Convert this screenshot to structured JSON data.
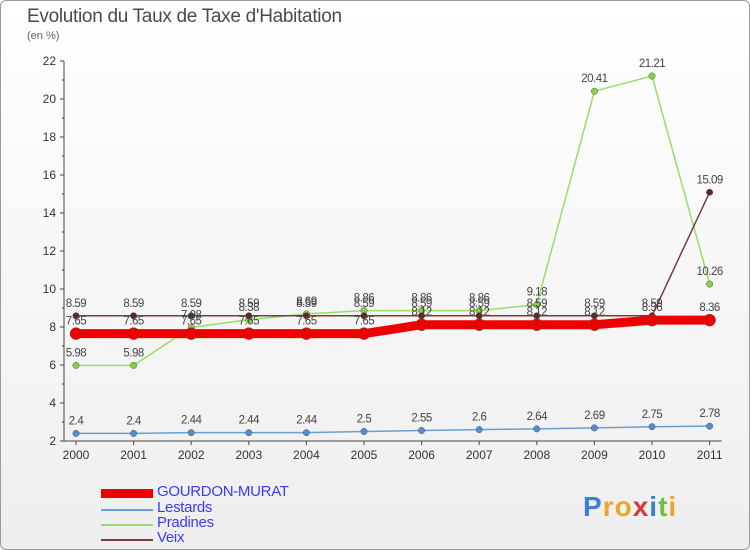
{
  "title": "Evolution du Taux de Taxe d'Habitation",
  "subtitle": "(en %)",
  "brand": {
    "letters": [
      "P",
      "r",
      "o",
      "x",
      "i",
      "t",
      "i"
    ],
    "colors": [
      "#3b7fd6",
      "#e8a62b",
      "#e8a62b",
      "#d63b3b",
      "#3b7fd6",
      "#6fbf3b",
      "#e8a62b"
    ]
  },
  "chart_data": {
    "type": "line",
    "title": "Evolution du Taux de Taxe d'Habitation",
    "ylabel": "(en %)",
    "xlabel": "",
    "categories": [
      "2000",
      "2001",
      "2002",
      "2003",
      "2004",
      "2005",
      "2006",
      "2007",
      "2008",
      "2009",
      "2010",
      "2011"
    ],
    "ylim": [
      2,
      22
    ],
    "yticks": [
      2,
      4,
      6,
      8,
      10,
      12,
      14,
      16,
      18,
      20,
      22
    ],
    "grid": false,
    "legend_position": "bottom-left",
    "series": [
      {
        "name": "GOURDON-MURAT",
        "color": "#ee0000",
        "width": 9,
        "values": [
          7.65,
          7.65,
          7.65,
          7.65,
          7.65,
          7.65,
          8.12,
          8.12,
          8.12,
          8.12,
          8.36,
          8.36
        ],
        "labels": [
          "7.65",
          "7.65",
          "7.65",
          "7.65",
          "7.65",
          "7.65",
          "8.12",
          "8.12",
          "8.12",
          "8.12",
          "8.36",
          "8.36"
        ]
      },
      {
        "name": "Lestards",
        "color": "#6a9fd0",
        "width": 1.5,
        "values": [
          2.4,
          2.4,
          2.44,
          2.44,
          2.44,
          2.5,
          2.55,
          2.6,
          2.64,
          2.69,
          2.75,
          2.78
        ],
        "labels": [
          "2.4",
          "2.4",
          "2.44",
          "2.44",
          "2.44",
          "2.5",
          "2.55",
          "2.6",
          "2.64",
          "2.69",
          "2.75",
          "2.78"
        ]
      },
      {
        "name": "Pradines",
        "color": "#99dd66",
        "width": 1.5,
        "values": [
          5.98,
          5.98,
          7.98,
          8.38,
          8.69,
          8.86,
          8.86,
          8.86,
          9.18,
          20.41,
          21.21,
          10.26
        ],
        "labels": [
          "5.98",
          "5.98",
          "7.98",
          "8.38",
          "8.69",
          "8.86",
          "8.86",
          "8.86",
          "9.18",
          "20.41",
          "21.21",
          "10.26"
        ]
      },
      {
        "name": "Veix",
        "color": "#7a3b3b",
        "width": 1.5,
        "values": [
          8.59,
          8.59,
          8.59,
          8.59,
          8.59,
          8.59,
          8.59,
          8.59,
          8.59,
          8.59,
          8.59,
          15.09
        ],
        "labels": [
          "8.59",
          "8.59",
          "8.59",
          "8.59",
          "8.59",
          "8.59",
          "8.59",
          "8.59",
          "8.59",
          "8.59",
          "8.59",
          "15.09"
        ]
      }
    ]
  }
}
